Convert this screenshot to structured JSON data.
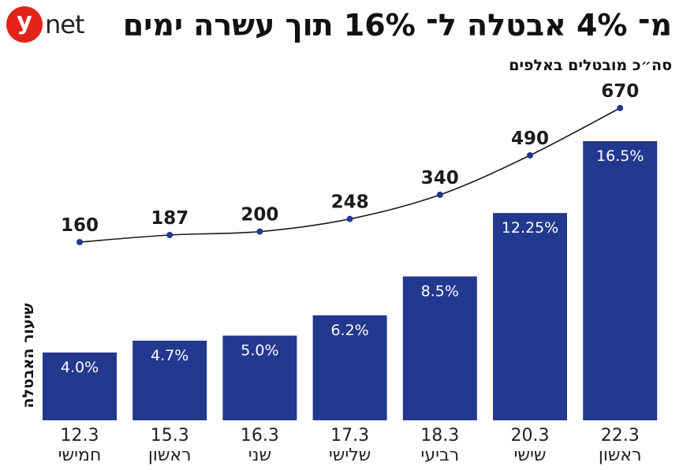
{
  "logo": {
    "mark": "y",
    "text": "net"
  },
  "title": "מ־ 4% אבטלה ל־ 16% תוך עשרה ימים",
  "chart_data": {
    "type": "bar",
    "title": "מ־ 4% אבטלה ל־ 16% תוך עשרה ימים",
    "categories": [
      {
        "date": "12.3",
        "day": "חמישי"
      },
      {
        "date": "15.3",
        "day": "ראשון"
      },
      {
        "date": "16.3",
        "day": "שני"
      },
      {
        "date": "17.3",
        "day": "שלישי"
      },
      {
        "date": "18.3",
        "day": "רביעי"
      },
      {
        "date": "20.3",
        "day": "שישי"
      },
      {
        "date": "22.3",
        "day": "ראשון"
      }
    ],
    "series": [
      {
        "name": "שיעור האבטלה",
        "type": "bar",
        "values": [
          4.0,
          4.7,
          5.0,
          6.2,
          8.5,
          12.25,
          16.5
        ],
        "labels": [
          "4.0%",
          "4.7%",
          "5.0%",
          "6.2%",
          "8.5%",
          "12.25%",
          "16.5%"
        ],
        "color": "#23388f"
      },
      {
        "name": "סה״כ מובטלים באלפים",
        "type": "line",
        "values": [
          160,
          187,
          200,
          248,
          340,
          490,
          670
        ],
        "labels": [
          "160",
          "187",
          "200",
          "248",
          "340",
          "490",
          "670"
        ],
        "color": "#23388f"
      }
    ],
    "ylabel": "שיעור האבטלה",
    "line_label": "סה״כ מובטלים באלפים",
    "grid": false,
    "legend": "none"
  }
}
